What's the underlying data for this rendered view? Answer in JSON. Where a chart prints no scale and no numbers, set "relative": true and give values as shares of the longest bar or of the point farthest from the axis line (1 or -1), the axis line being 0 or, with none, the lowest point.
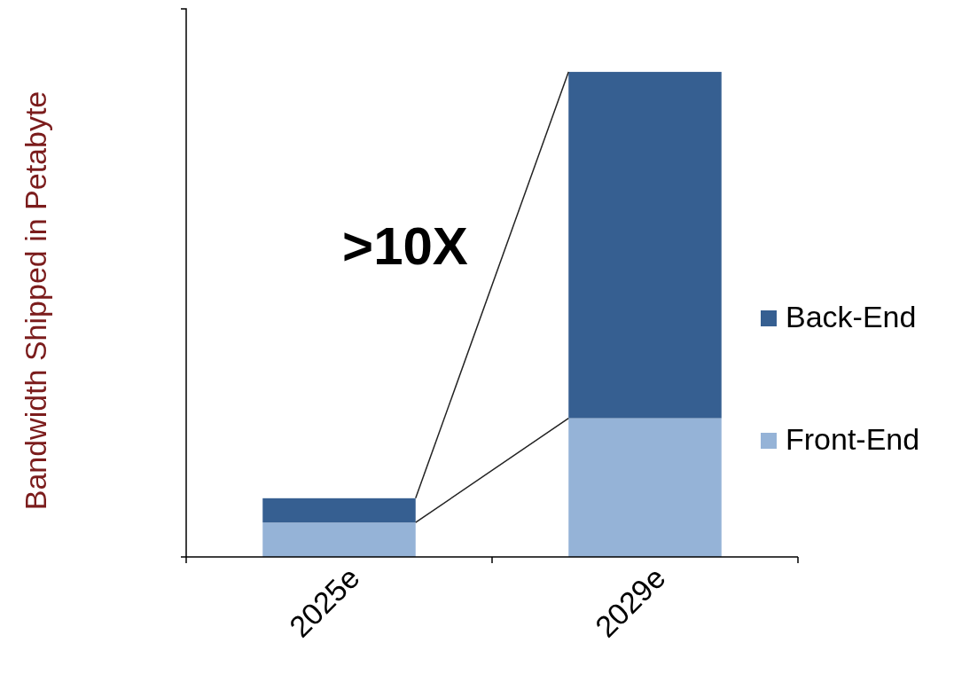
{
  "chart_data": {
    "type": "bar",
    "ylabel": "Bandwidth Shipped in Petabyte",
    "categories": [
      "2025e",
      "2029e"
    ],
    "stacked": true,
    "relative": true,
    "legend": "right",
    "annotations": [
      ">10X"
    ],
    "series": [
      {
        "name": "Front-End",
        "color": "#95b3d7",
        "values": [
          0.071,
          0.286
        ]
      },
      {
        "name": "Back-End",
        "color": "#365f91",
        "values": [
          0.05,
          0.714
        ]
      }
    ]
  }
}
